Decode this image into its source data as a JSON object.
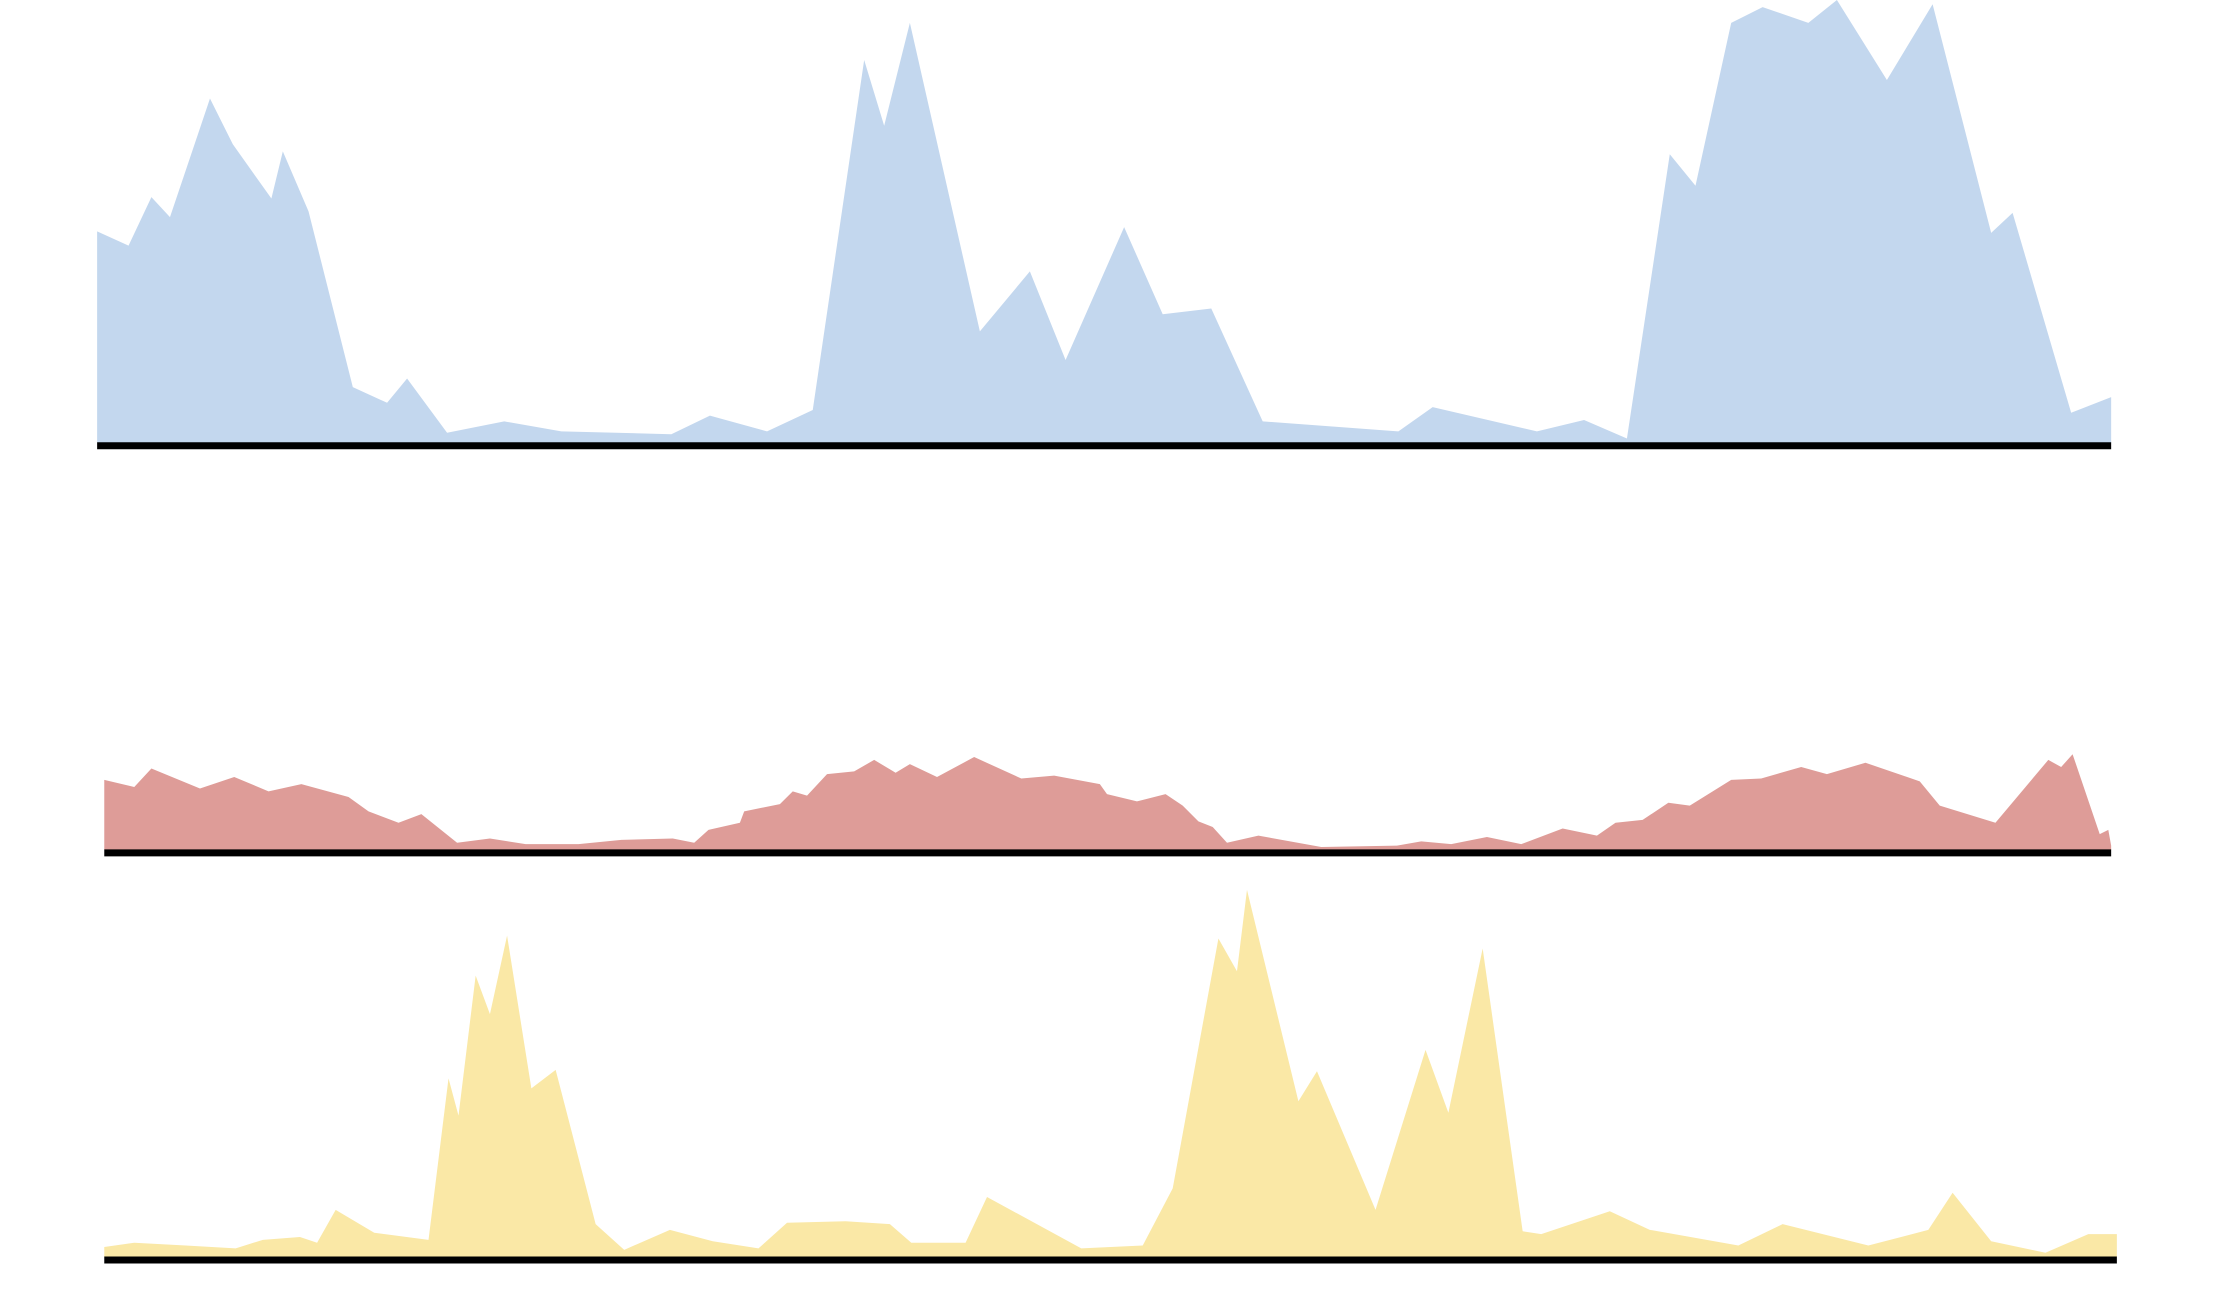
{
  "chart_data": [
    {
      "type": "area",
      "color": "#c3d7ee",
      "xlim": [
        68,
        1478
      ],
      "ylim": [
        0,
        310
      ],
      "x": [
        68,
        90,
        106,
        119,
        147,
        163,
        190,
        198,
        216,
        247,
        271,
        285,
        313,
        353,
        393,
        470,
        497,
        537,
        569,
        605,
        619,
        637,
        686,
        721,
        746,
        787,
        814,
        848,
        884,
        979,
        1003,
        1076,
        1109,
        1139,
        1169,
        1187,
        1212,
        1234,
        1266,
        1286,
        1321,
        1353,
        1394,
        1409,
        1450,
        1478
      ],
      "values": [
        148,
        138,
        172,
        158,
        241,
        209,
        171,
        204,
        162,
        39,
        28,
        45,
        7,
        15,
        8,
        6,
        19,
        8,
        23,
        268,
        222,
        294,
        78,
        120,
        58,
        151,
        90,
        94,
        15,
        8,
        25,
        8,
        16,
        3,
        202,
        180,
        294,
        305,
        294,
        310,
        254,
        307,
        147,
        161,
        21,
        32
      ]
    },
    {
      "type": "area",
      "color": "#de9c98",
      "xlim": [
        73,
        1478
      ],
      "ylim": [
        0,
        80
      ],
      "x": [
        73,
        94,
        106,
        140,
        164,
        188,
        211,
        244,
        258,
        279,
        295,
        320,
        343,
        368,
        405,
        435,
        471,
        486,
        496,
        518,
        521,
        546,
        555,
        565,
        579,
        598,
        612,
        627,
        637,
        656,
        682,
        715,
        738,
        770,
        775,
        796,
        816,
        828,
        839,
        849,
        859,
        881,
        925,
        978,
        995,
        1016,
        1041,
        1065,
        1094,
        1118,
        1131,
        1150,
        1168,
        1183,
        1212,
        1233,
        1261,
        1279,
        1306,
        1344,
        1358,
        1397,
        1434,
        1443,
        1451,
        1470,
        1476,
        1478
      ],
      "values": [
        49,
        44,
        57,
        43,
        51,
        41,
        46,
        37,
        27,
        19,
        25,
        5,
        8,
        4,
        4,
        7,
        8,
        5,
        14,
        19,
        27,
        32,
        41,
        38,
        53,
        55,
        63,
        54,
        60,
        51,
        65,
        50,
        52,
        46,
        39,
        34,
        39,
        31,
        20,
        16,
        5,
        10,
        2,
        3,
        6,
        4,
        9,
        4,
        15,
        10,
        19,
        21,
        33,
        31,
        49,
        50,
        58,
        53,
        61,
        48,
        31,
        19,
        63,
        58,
        67,
        11,
        14,
        3
      ]
    },
    {
      "type": "area",
      "color": "#fae8a6",
      "xlim": [
        73,
        1482
      ],
      "ylim": [
        0,
        260
      ],
      "x": [
        73,
        94,
        130,
        165,
        184,
        210,
        222,
        235,
        262,
        300,
        314,
        321,
        333,
        343,
        355,
        372,
        389,
        417,
        437,
        469,
        499,
        531,
        551,
        592,
        623,
        638,
        676,
        691,
        757,
        800,
        821,
        853,
        866,
        873,
        909,
        922,
        963,
        998,
        1014,
        1038,
        1066,
        1079,
        1127,
        1155,
        1217,
        1248,
        1308,
        1350,
        1367,
        1394,
        1432,
        1462,
        1482
      ],
      "values": [
        7,
        10,
        8,
        6,
        12,
        14,
        10,
        33,
        17,
        12,
        125,
        99,
        197,
        170,
        225,
        118,
        131,
        23,
        5,
        19,
        11,
        6,
        24,
        25,
        23,
        10,
        10,
        42,
        6,
        8,
        48,
        223,
        200,
        257,
        109,
        130,
        33,
        145,
        101,
        216,
        18,
        16,
        32,
        19,
        8,
        23,
        8,
        19,
        45,
        11,
        3,
        16,
        16
      ]
    }
  ]
}
